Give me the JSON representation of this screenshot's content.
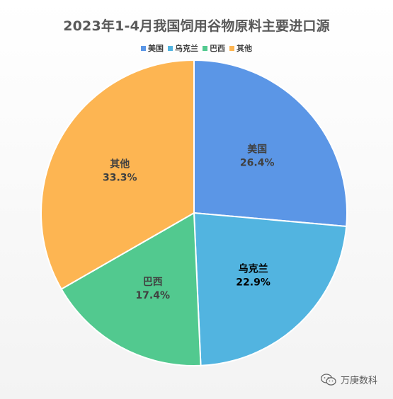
{
  "chart_data": {
    "type": "pie",
    "title": "2023年1-4月我国饲用谷物原料主要进口源",
    "categories": [
      "美国",
      "乌克兰",
      "巴西",
      "其他"
    ],
    "values": [
      26.4,
      22.9,
      17.4,
      33.3
    ],
    "labels": [
      "26.4%",
      "22.9%",
      "17.4%",
      "33.3%"
    ],
    "colors": [
      "#5b96e6",
      "#52b4e0",
      "#52c98f",
      "#fdb552"
    ],
    "legend_position": "top"
  },
  "watermark": {
    "text": "万庚数科",
    "icon": "wechat-icon"
  }
}
